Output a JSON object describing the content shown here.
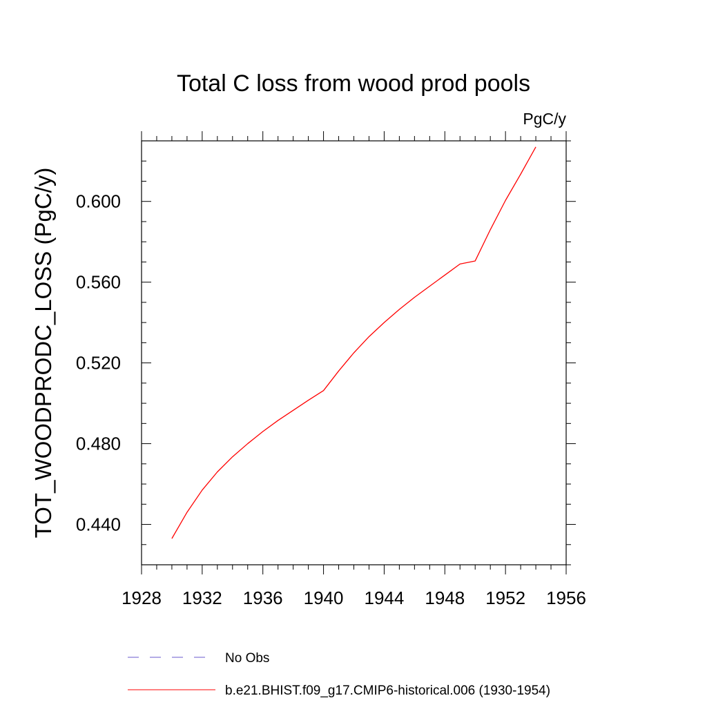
{
  "chart_data": {
    "type": "line",
    "title": "Total C loss from wood prod pools",
    "units": "PgC/y",
    "xlabel": "",
    "ylabel": "TOT_WOODPRODC_LOSS  (PgC/y)",
    "xlim": [
      1928,
      1956
    ],
    "ylim": [
      0.42,
      0.63
    ],
    "x_ticks": [
      "1928",
      "1932",
      "1936",
      "1940",
      "1944",
      "1948",
      "1952",
      "1956"
    ],
    "y_ticks": [
      "0.440",
      "0.480",
      "0.520",
      "0.560",
      "0.600"
    ],
    "grid": false,
    "series": [
      {
        "name": "b.e21.BHIST.f09_g17.CMIP6-historical.006 (1930-1954)",
        "color": "#ff0000",
        "style": "solid",
        "x": [
          1930,
          1931,
          1932,
          1933,
          1934,
          1935,
          1936,
          1937,
          1938,
          1939,
          1940,
          1941,
          1942,
          1943,
          1944,
          1945,
          1946,
          1947,
          1948,
          1949,
          1950,
          1951,
          1952,
          1953,
          1954
        ],
        "y": [
          0.433,
          0.446,
          0.457,
          0.466,
          0.4735,
          0.48,
          0.486,
          0.4915,
          0.4965,
          0.5015,
          0.5063,
          0.516,
          0.525,
          0.533,
          0.54,
          0.5465,
          0.5525,
          0.558,
          0.5635,
          0.569,
          0.5705,
          0.586,
          0.6005,
          0.6135,
          0.627
        ]
      }
    ],
    "legend": [
      {
        "label": "No Obs",
        "color": "#6a5acd",
        "style": "dashed"
      },
      {
        "label": "b.e21.BHIST.f09_g17.CMIP6-historical.006 (1930-1954)",
        "color": "#ff0000",
        "style": "solid"
      }
    ],
    "legend_position": "bottom"
  }
}
